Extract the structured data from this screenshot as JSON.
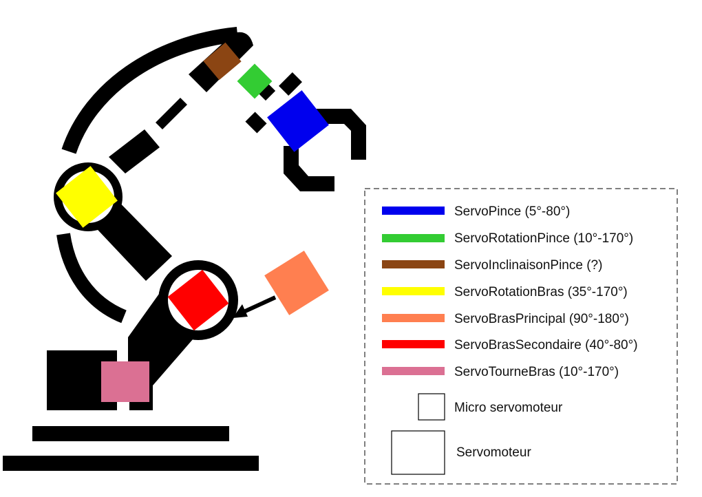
{
  "legend": {
    "items": [
      {
        "label": "ServoPince (5°-80°)",
        "color": "#0000ee"
      },
      {
        "label": "ServoRotationPince (10°-170°)",
        "color": "#33cc33"
      },
      {
        "label": "ServoInclinaisonPince (?)",
        "color": "#8b4513"
      },
      {
        "label": "ServoRotationBras (35°-170°)",
        "color": "#ffff00"
      },
      {
        "label": "ServoBrasPrincipal (90°-180°)",
        "color": "#ff7f50"
      },
      {
        "label": "ServoBrasSecondaire (40°-80°)",
        "color": "#ff0000"
      },
      {
        "label": "ServoTourneBras (10°-170°)",
        "color": "#db7093"
      }
    ],
    "size_keys": [
      {
        "label": "Micro servomoteur"
      },
      {
        "label": "Servomoteur"
      }
    ]
  },
  "colors": {
    "robot": "#000000",
    "pince": "#0000ee",
    "rotation_pince": "#33cc33",
    "inclinaison_pince": "#8b4513",
    "rotation_bras": "#ffff00",
    "bras_principal": "#ff7f50",
    "bras_secondaire": "#ff0000",
    "tourne_bras": "#db7093"
  }
}
